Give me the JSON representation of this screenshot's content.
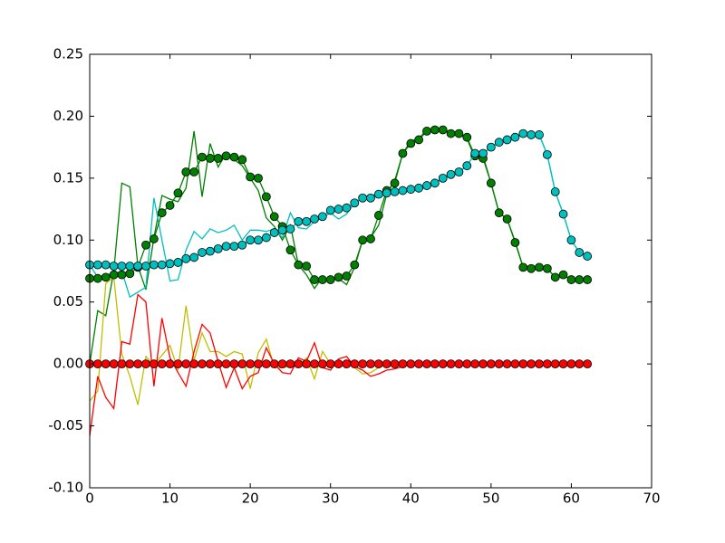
{
  "chart_data": {
    "type": "line",
    "x": [
      0,
      1,
      2,
      3,
      4,
      5,
      6,
      7,
      8,
      9,
      10,
      11,
      12,
      13,
      14,
      15,
      16,
      17,
      18,
      19,
      20,
      21,
      22,
      23,
      24,
      25,
      26,
      27,
      28,
      29,
      30,
      31,
      32,
      33,
      34,
      35,
      36,
      37,
      38,
      39,
      40,
      41,
      42,
      43,
      44,
      45,
      46,
      47,
      48,
      49,
      50,
      51,
      52,
      53,
      54,
      55,
      56,
      57,
      58,
      59,
      60,
      61,
      62
    ],
    "xlim": [
      0,
      70
    ],
    "xticks": [
      0,
      10,
      20,
      30,
      40,
      50,
      60,
      70
    ],
    "ylim": [
      -0.1,
      0.25
    ],
    "yticks": [
      {
        "value": -0.1,
        "label": "-0.10"
      },
      -0.05,
      {
        "value": 0,
        "label": "0.00"
      },
      0.05,
      {
        "value": 0.1,
        "label": "0.10"
      },
      0.15,
      {
        "value": 0.2,
        "label": "0.20"
      },
      0.25
    ],
    "grid": false,
    "series": [
      {
        "color": "#007f00",
        "marker": "none",
        "values": [
          0.0,
          0.043,
          0.039,
          0.075,
          0.146,
          0.143,
          0.079,
          0.06,
          0.102,
          0.136,
          0.133,
          0.131,
          0.142,
          0.188,
          0.135,
          0.178,
          0.159,
          0.17,
          0.165,
          0.16,
          0.15,
          0.14,
          0.118,
          0.111,
          0.1,
          0.112,
          0.08,
          0.072,
          0.061,
          0.07,
          0.068,
          0.069,
          0.064,
          0.078,
          0.1,
          0.102,
          0.112,
          0.137,
          0.148,
          0.17,
          0.18,
          0.182,
          0.189,
          0.189,
          0.19,
          0.186,
          0.186,
          0.182,
          0.166,
          0.168,
          0.146,
          0.122,
          0.117,
          0.099,
          0.078,
          0.078,
          0.077,
          0.078,
          0.069,
          0.072,
          0.068,
          0.068,
          0.068
        ]
      },
      {
        "color": "#00bfbf",
        "marker": "none",
        "values": [
          0.08,
          0.07,
          0.072,
          0.073,
          0.075,
          0.054,
          0.058,
          0.062,
          0.134,
          0.1,
          0.067,
          0.068,
          0.092,
          0.107,
          0.101,
          0.109,
          0.106,
          0.108,
          0.112,
          0.1,
          0.108,
          0.108,
          0.107,
          0.109,
          0.102,
          0.122,
          0.11,
          0.109,
          0.115,
          0.118,
          0.122,
          0.117,
          0.121,
          0.13,
          0.134,
          0.136,
          0.137,
          0.14,
          0.14,
          0.141,
          0.141,
          0.142,
          0.144,
          0.146,
          0.15,
          0.153,
          0.155,
          0.16,
          0.17,
          0.17,
          0.175,
          0.179,
          0.181,
          0.183,
          0.186,
          0.185,
          0.185,
          0.169,
          0.139,
          0.121,
          0.1,
          0.09,
          0.087
        ]
      },
      {
        "color": "#bfbf00",
        "marker": "none",
        "values": [
          -0.03,
          -0.022,
          0.065,
          0.07,
          0.008,
          -0.01,
          -0.033,
          0.006,
          -0.001,
          0.007,
          0.015,
          -0.005,
          0.047,
          0.003,
          0.025,
          0.01,
          0.01,
          0.006,
          0.01,
          0.008,
          -0.02,
          0.009,
          0.02,
          -0.003,
          -0.003,
          -0.002,
          -0.002,
          0.005,
          -0.012,
          0.01,
          0.0,
          -0.001,
          0.002,
          -0.003,
          -0.008,
          -0.007,
          -0.003,
          0.0,
          0,
          0,
          0,
          0,
          0,
          0,
          0,
          0,
          0,
          0,
          0,
          0,
          0,
          0,
          0,
          0,
          0,
          0,
          0,
          0,
          0,
          0,
          0,
          0,
          0
        ]
      },
      {
        "color": "#ff0000",
        "marker": "none",
        "values": [
          -0.058,
          -0.01,
          -0.027,
          -0.036,
          0.018,
          0.016,
          0.056,
          0.05,
          -0.018,
          0.037,
          0.005,
          -0.007,
          -0.018,
          0.01,
          0.032,
          0.025,
          0.002,
          -0.019,
          -0.003,
          -0.02,
          -0.01,
          -0.007,
          0.013,
          0.0,
          -0.007,
          -0.008,
          0.005,
          0.002,
          0.017,
          -0.003,
          -0.005,
          0.004,
          0.006,
          -0.002,
          -0.005,
          -0.01,
          -0.008,
          -0.005,
          -0.004,
          -0.002,
          0,
          0,
          0,
          0,
          0,
          0,
          0,
          0,
          0,
          0,
          0,
          0,
          0,
          0,
          0,
          0,
          0,
          0,
          0,
          0,
          0,
          0,
          0
        ]
      },
      {
        "color": "#007f00",
        "marker": "o",
        "values": [
          0.069,
          0.069,
          0.07,
          0.072,
          0.072,
          0.073,
          0.078,
          0.096,
          0.101,
          0.122,
          0.128,
          0.138,
          0.155,
          0.155,
          0.167,
          0.166,
          0.166,
          0.168,
          0.167,
          0.165,
          0.151,
          0.15,
          0.135,
          0.119,
          0.111,
          0.092,
          0.08,
          0.079,
          0.068,
          0.068,
          0.068,
          0.07,
          0.071,
          0.08,
          0.1,
          0.101,
          0.12,
          0.14,
          0.146,
          0.17,
          0.178,
          0.181,
          0.188,
          0.189,
          0.189,
          0.186,
          0.186,
          0.183,
          0.168,
          0.166,
          0.146,
          0.122,
          0.117,
          0.098,
          0.078,
          0.077,
          0.078,
          0.077,
          0.07,
          0.072,
          0.068,
          0.068,
          0.068
        ]
      },
      {
        "color": "#00bfbf",
        "marker": "o",
        "values": [
          0.08,
          0.08,
          0.08,
          0.079,
          0.079,
          0.079,
          0.079,
          0.079,
          0.08,
          0.08,
          0.081,
          0.082,
          0.085,
          0.086,
          0.09,
          0.091,
          0.093,
          0.095,
          0.095,
          0.096,
          0.1,
          0.1,
          0.102,
          0.106,
          0.108,
          0.109,
          0.115,
          0.115,
          0.117,
          0.119,
          0.124,
          0.125,
          0.126,
          0.13,
          0.134,
          0.134,
          0.137,
          0.138,
          0.139,
          0.14,
          0.141,
          0.142,
          0.144,
          0.146,
          0.15,
          0.153,
          0.155,
          0.16,
          0.17,
          0.17,
          0.175,
          0.179,
          0.181,
          0.183,
          0.186,
          0.185,
          0.185,
          0.169,
          0.139,
          0.121,
          0.1,
          0.09,
          0.087
        ]
      },
      {
        "color": "#ff0000",
        "marker": "o",
        "values": [
          0,
          0,
          0,
          0,
          0,
          0,
          0,
          0,
          0,
          0,
          0,
          0,
          0,
          0,
          0,
          0,
          0,
          0,
          0,
          0,
          0,
          0,
          0,
          0,
          0,
          0,
          0,
          0,
          0,
          0,
          0,
          0,
          0,
          0,
          0,
          0,
          0,
          0,
          0,
          0,
          0,
          0,
          0,
          0,
          0,
          0,
          0,
          0,
          0,
          0,
          0,
          0,
          0,
          0,
          0,
          0,
          0,
          0,
          0,
          0,
          0,
          0,
          0
        ]
      }
    ]
  }
}
